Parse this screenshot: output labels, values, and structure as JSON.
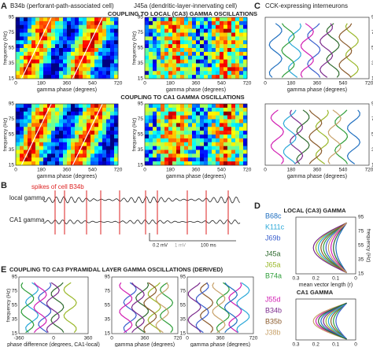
{
  "panel_letters": {
    "a": "A",
    "b": "B",
    "c": "C",
    "d": "D",
    "e": "E"
  },
  "panel_a": {
    "cell_1": "B34b (perforant-path-associated cell)",
    "cell_2": "J45a (dendritic-layer-innervating cell)",
    "row_1_title": "COUPLING TO LOCAL (CA3) GAMMA OSCILLATIONS",
    "row_2_title": "COUPLING TO CA1 GAMMA OSCILLATIONS",
    "y_label": "frequency (Hz)",
    "x_label": "gamma phase (degrees)",
    "y_ticks": [
      "95",
      "75",
      "55",
      "35",
      "15"
    ],
    "x_ticks": [
      "0",
      "180",
      "360",
      "540",
      "720"
    ]
  },
  "panel_b": {
    "spikes_label": "spikes of cell B34b",
    "trace_1": "local gamma",
    "trace_2": "CA1 gamma",
    "scale_1": "0.2 mV",
    "scale_2": "1 mV",
    "scale_time": "100 ms"
  },
  "panel_c": {
    "title": "CCK-expressing interneurons",
    "x_label": "gamma phase (degrees)"
  },
  "panel_d": {
    "title_1": "LOCAL (CA3) GAMMA",
    "title_2": "CA1 GAMMA",
    "y_label": "frequency (Hz)",
    "x_label": "mean vector length (r)",
    "x_ticks": [
      "0.3",
      "0.2",
      "0.1",
      "0"
    ],
    "cells": [
      {
        "name": "B68c",
        "color": "#1f6fc0"
      },
      {
        "name": "K111c",
        "color": "#2aa8d8"
      },
      {
        "name": "J69b",
        "color": "#3a5fcd"
      },
      {
        "name": "J45a",
        "color": "#2e6b2e"
      },
      {
        "name": "J65a",
        "color": "#9ab82a"
      },
      {
        "name": "B74a",
        "color": "#2f9e3a"
      },
      {
        "name": "J55d",
        "color": "#d21fb3"
      },
      {
        "name": "B34b",
        "color": "#7b2a8c"
      },
      {
        "name": "B35b",
        "color": "#8a5a2b"
      },
      {
        "name": "J38b",
        "color": "#c8a26a"
      }
    ]
  },
  "panel_e": {
    "title": "COUPLING TO CA3 PYRAMIDAL LAYER GAMMA OSCILLATIONS (DERIVED)",
    "x_label_1": "phase difference (degrees, CA1-local)",
    "x_label_2": "gamma phase (degrees)",
    "x_ticks_1": [
      "-360",
      "0",
      "360"
    ],
    "x_ticks_2": [
      "0",
      "360",
      "720"
    ]
  }
}
